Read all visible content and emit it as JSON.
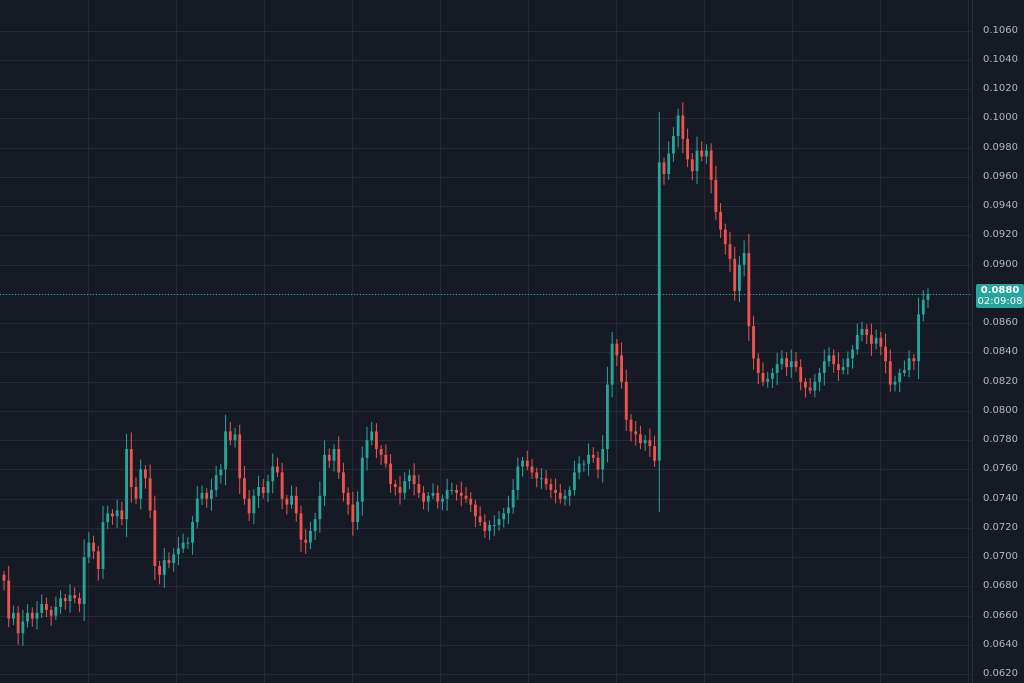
{
  "colors": {
    "background": "#161a25",
    "grid": "#262a35",
    "up": "#26a69a",
    "down": "#ef5350",
    "axis_text": "#b2b5be"
  },
  "last_price": {
    "price": "0.0880",
    "countdown": "02:09:08"
  },
  "chart_data": {
    "type": "candlestick",
    "title": "",
    "xlabel": "",
    "ylabel": "",
    "ylim": [
      0.0614,
      0.1081
    ],
    "grid": true,
    "last_price": 0.088,
    "y_ticks": [
      "0.1060",
      "0.1040",
      "0.1020",
      "0.1000",
      "0.0980",
      "0.0960",
      "0.0940",
      "0.0920",
      "0.0900",
      "0.0880",
      "0.0860",
      "0.0840",
      "0.0820",
      "0.0800",
      "0.0780",
      "0.0760",
      "0.0740",
      "0.0720",
      "0.0700",
      "0.0680",
      "0.0660",
      "0.0640",
      "0.0620"
    ],
    "closes": [
      0.0684,
      0.0658,
      0.0662,
      0.0648,
      0.0656,
      0.0662,
      0.0658,
      0.0662,
      0.0668,
      0.0664,
      0.066,
      0.0666,
      0.0672,
      0.067,
      0.0674,
      0.0672,
      0.0668,
      0.07,
      0.071,
      0.0704,
      0.0692,
      0.0724,
      0.073,
      0.0728,
      0.0732,
      0.0726,
      0.0774,
      0.0748,
      0.074,
      0.076,
      0.0754,
      0.0732,
      0.0694,
      0.0688,
      0.0698,
      0.0696,
      0.0702,
      0.0706,
      0.071,
      0.071,
      0.0724,
      0.074,
      0.0744,
      0.074,
      0.0746,
      0.0756,
      0.076,
      0.0786,
      0.078,
      0.0784,
      0.0754,
      0.074,
      0.073,
      0.0742,
      0.0748,
      0.0744,
      0.0752,
      0.0762,
      0.0758,
      0.074,
      0.0736,
      0.0742,
      0.073,
      0.0712,
      0.071,
      0.0718,
      0.0726,
      0.0742,
      0.077,
      0.0766,
      0.0774,
      0.0758,
      0.0744,
      0.0736,
      0.0724,
      0.0738,
      0.0768,
      0.078,
      0.0786,
      0.0774,
      0.077,
      0.0764,
      0.075,
      0.0748,
      0.0744,
      0.0752,
      0.0756,
      0.075,
      0.0744,
      0.0738,
      0.0742,
      0.0744,
      0.0738,
      0.074,
      0.0746,
      0.0746,
      0.0744,
      0.0742,
      0.074,
      0.0736,
      0.0728,
      0.0724,
      0.0718,
      0.0722,
      0.0722,
      0.0726,
      0.073,
      0.0734,
      0.0746,
      0.0762,
      0.0766,
      0.0762,
      0.0758,
      0.0754,
      0.0754,
      0.075,
      0.0746,
      0.0744,
      0.074,
      0.0742,
      0.0746,
      0.0758,
      0.0764,
      0.0764,
      0.077,
      0.0768,
      0.076,
      0.0774,
      0.0818,
      0.0846,
      0.0838,
      0.082,
      0.0794,
      0.0786,
      0.0784,
      0.0778,
      0.078,
      0.0776,
      0.0766,
      0.097,
      0.0962,
      0.0976,
      0.0988,
      0.1002,
      0.0986,
      0.0972,
      0.0964,
      0.0978,
      0.0974,
      0.0978,
      0.0958,
      0.0936,
      0.0924,
      0.0914,
      0.0904,
      0.0882,
      0.09,
      0.0908,
      0.0858,
      0.0836,
      0.0826,
      0.082,
      0.0822,
      0.0826,
      0.0832,
      0.0836,
      0.083,
      0.0834,
      0.083,
      0.082,
      0.0816,
      0.0814,
      0.082,
      0.0826,
      0.0834,
      0.0838,
      0.0832,
      0.0828,
      0.083,
      0.0836,
      0.0842,
      0.0852,
      0.0856,
      0.0852,
      0.0846,
      0.085,
      0.0844,
      0.0834,
      0.0818,
      0.082,
      0.0826,
      0.0828,
      0.0836,
      0.0834,
      0.0866,
      0.0876,
      0.088
    ]
  }
}
